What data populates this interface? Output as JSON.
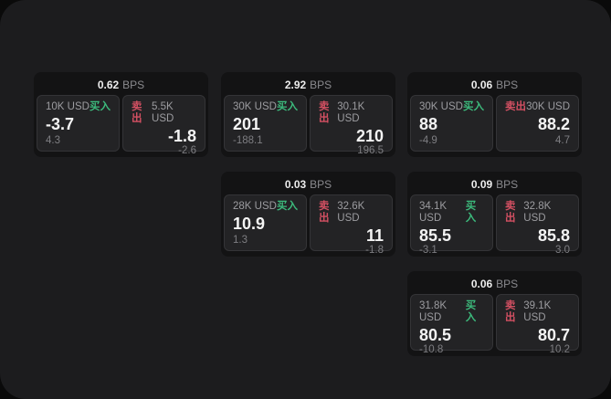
{
  "page": {
    "background": "#0a0a0a",
    "panel_background": "#1c1c1e"
  },
  "colors": {
    "buy_green": "#3cba7c",
    "sell_red": "#d35062",
    "card_background": "#131314",
    "subpanel_background": "#232325",
    "value_white": "#f4f4f4",
    "label_gray": "#9c9ca0"
  },
  "labels": {
    "bps_suffix": "BPS",
    "buy": "买入",
    "sell": "卖出"
  },
  "cards": [
    {
      "bps": "0.62",
      "buy": {
        "size": "10K USD",
        "value": "-3.7",
        "delta": "4.3"
      },
      "sell": {
        "size": "5.5K USD",
        "value": "-1.8",
        "delta": "-2.6"
      }
    },
    {
      "bps": "2.92",
      "buy": {
        "size": "30K USD",
        "value": "201",
        "delta": "-188.1"
      },
      "sell": {
        "size": "30.1K USD",
        "value": "210",
        "delta": "196.5"
      }
    },
    {
      "bps": "0.06",
      "buy": {
        "size": "30K USD",
        "value": "88",
        "delta": "-4.9"
      },
      "sell": {
        "size": "30K USD",
        "value": "88.2",
        "delta": "4.7"
      }
    },
    {
      "bps": "0.03",
      "buy": {
        "size": "28K USD",
        "value": "10.9",
        "delta": "1.3"
      },
      "sell": {
        "size": "32.6K USD",
        "value": "11",
        "delta": "-1.8"
      }
    },
    {
      "bps": "0.09",
      "buy": {
        "size": "34.1K USD",
        "value": "85.5",
        "delta": "-3.1"
      },
      "sell": {
        "size": "32.8K USD",
        "value": "85.8",
        "delta": "3.0"
      }
    },
    {
      "bps": "0.06",
      "buy": {
        "size": "31.8K USD",
        "value": "80.5",
        "delta": "-10.8"
      },
      "sell": {
        "size": "39.1K USD",
        "value": "80.7",
        "delta": "10.2"
      }
    }
  ]
}
